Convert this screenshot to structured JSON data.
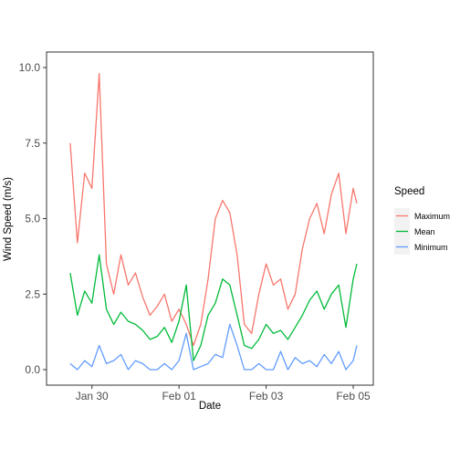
{
  "chart_data": {
    "type": "line",
    "title": "",
    "xlabel": "Date",
    "ylabel": "Wind Speed (m/s)",
    "xlim": [
      "2020-01-29",
      "2020-02-05"
    ],
    "ylim": [
      0,
      10
    ],
    "x_ticks": [
      {
        "date": "2020-01-30",
        "label": "Jan 30"
      },
      {
        "date": "2020-02-01",
        "label": "Feb 01"
      },
      {
        "date": "2020-02-03",
        "label": "Feb 03"
      },
      {
        "date": "2020-02-05",
        "label": "Feb 05"
      }
    ],
    "y_ticks": [
      {
        "value": 0,
        "label": "0.0"
      },
      {
        "value": 2.5,
        "label": "2.5"
      },
      {
        "value": 5,
        "label": "5.0"
      },
      {
        "value": 7.5,
        "label": "7.5"
      },
      {
        "value": 10,
        "label": "10.0"
      }
    ],
    "grid": false,
    "legend": {
      "title": "Speed",
      "position": "right"
    },
    "x": [
      "2020-01-29T12:00",
      "2020-01-29T16:00",
      "2020-01-29T20:00",
      "2020-01-30T00:00",
      "2020-01-30T04:00",
      "2020-01-30T08:00",
      "2020-01-30T12:00",
      "2020-01-30T16:00",
      "2020-01-30T20:00",
      "2020-01-31T00:00",
      "2020-01-31T04:00",
      "2020-01-31T08:00",
      "2020-01-31T12:00",
      "2020-01-31T16:00",
      "2020-01-31T20:00",
      "2020-02-01T00:00",
      "2020-02-01T04:00",
      "2020-02-01T08:00",
      "2020-02-01T12:00",
      "2020-02-01T16:00",
      "2020-02-01T20:00",
      "2020-02-02T00:00",
      "2020-02-02T04:00",
      "2020-02-02T08:00",
      "2020-02-02T12:00",
      "2020-02-02T16:00",
      "2020-02-02T20:00",
      "2020-02-03T00:00",
      "2020-02-03T04:00",
      "2020-02-03T08:00",
      "2020-02-03T12:00",
      "2020-02-03T16:00",
      "2020-02-03T20:00",
      "2020-02-04T00:00",
      "2020-02-04T04:00",
      "2020-02-04T08:00",
      "2020-02-04T12:00",
      "2020-02-04T16:00",
      "2020-02-04T20:00",
      "2020-02-05T00:00",
      "2020-02-05T02:00"
    ],
    "series": [
      {
        "name": "Maximum",
        "color": "#f8766d",
        "values": [
          7.5,
          4.2,
          6.5,
          6.0,
          9.8,
          3.5,
          2.5,
          3.8,
          2.8,
          3.2,
          2.4,
          1.8,
          2.1,
          2.5,
          1.6,
          2.0,
          1.5,
          0.8,
          1.5,
          3.0,
          5.0,
          5.6,
          5.2,
          3.8,
          1.5,
          1.2,
          2.5,
          3.5,
          2.8,
          3.0,
          2.0,
          2.5,
          4.0,
          5.0,
          5.5,
          4.5,
          5.8,
          6.5,
          4.5,
          6.0,
          5.5
        ]
      },
      {
        "name": "Mean",
        "color": "#00ba38",
        "values": [
          3.2,
          1.8,
          2.6,
          2.2,
          3.8,
          2.0,
          1.5,
          1.9,
          1.6,
          1.5,
          1.3,
          1.0,
          1.1,
          1.4,
          0.9,
          1.6,
          2.8,
          0.3,
          0.8,
          1.8,
          2.2,
          3.0,
          2.8,
          1.8,
          0.8,
          0.7,
          1.0,
          1.5,
          1.2,
          1.3,
          1.0,
          1.4,
          1.8,
          2.3,
          2.6,
          2.0,
          2.5,
          2.8,
          1.4,
          3.0,
          3.5
        ]
      },
      {
        "name": "Minimum",
        "color": "#619cff",
        "values": [
          0.2,
          0.0,
          0.3,
          0.1,
          0.8,
          0.2,
          0.3,
          0.5,
          0.0,
          0.3,
          0.2,
          0.0,
          0.0,
          0.2,
          0.0,
          0.3,
          1.2,
          0.0,
          0.1,
          0.2,
          0.5,
          0.4,
          1.5,
          0.8,
          0.0,
          0.0,
          0.2,
          0.0,
          0.0,
          0.6,
          0.0,
          0.4,
          0.2,
          0.3,
          0.1,
          0.5,
          0.2,
          0.6,
          0.0,
          0.3,
          0.8
        ]
      }
    ]
  }
}
